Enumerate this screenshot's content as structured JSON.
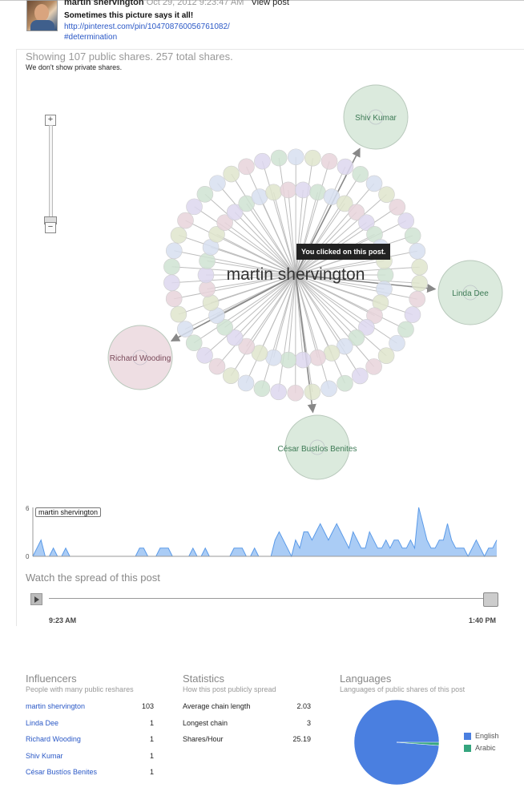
{
  "post": {
    "author": "martin shervington",
    "date": "Oct 29, 2012 9:23:47 AM",
    "view_post": "View post",
    "title": "Sometimes this picture says it all!",
    "url": "http://pinterest.com/pin/104708760056761082/",
    "hashtag": "#determination"
  },
  "summary": {
    "shares_text": "Showing 107 public shares. 257 total shares.",
    "private_note": "We don't show private shares."
  },
  "zoom": {
    "plus": "+",
    "minus": "−"
  },
  "graph": {
    "center_label": "martin shervington",
    "tooltip": "You clicked on this post.",
    "influencer_nodes": [
      "Shiv Kumar",
      "Linda Dee",
      "Richard Wooding",
      "César Bustíos Benites"
    ],
    "colors": {
      "green": "#cfe3d2",
      "pink": "#e8d3da",
      "blue": "#d7dff0",
      "lavender": "#ddd7ee",
      "olive": "#dfe5cc",
      "edge": "#bdbdbd",
      "arrow": "#888888"
    }
  },
  "timeline": {
    "tooltip_label": "martin shervington",
    "y_max_label": "6",
    "y_min_label": "0",
    "fill": "#aaccf5",
    "stroke": "#5a9ae8"
  },
  "chart_data": {
    "type": "area",
    "title": "",
    "xlabel": "",
    "ylabel": "",
    "ylim": [
      0,
      6
    ],
    "x_range_labels": [
      "9:23 AM",
      "1:40 PM"
    ],
    "values": [
      0,
      1,
      2,
      0,
      0,
      1,
      0,
      0,
      1,
      0,
      0,
      0,
      0,
      0,
      0,
      0,
      0,
      0,
      0,
      0,
      0,
      0,
      0,
      0,
      0,
      0,
      1,
      1,
      0,
      0,
      0,
      1,
      1,
      1,
      0,
      0,
      0,
      0,
      0,
      1,
      0,
      0,
      1,
      0,
      0,
      0,
      0,
      0,
      0,
      1,
      1,
      1,
      0,
      0,
      1,
      0,
      0,
      0,
      0,
      2,
      3,
      2,
      1,
      0,
      2,
      1,
      3,
      3,
      2,
      3,
      4,
      3,
      2,
      3,
      4,
      3,
      2,
      1,
      3,
      2,
      1,
      1,
      3,
      2,
      1,
      1,
      2,
      1,
      2,
      2,
      1,
      1,
      2,
      1,
      6,
      4,
      2,
      1,
      1,
      2,
      2,
      4,
      2,
      1,
      1,
      1,
      0,
      1,
      2,
      1,
      0,
      1,
      1,
      2
    ]
  },
  "playback": {
    "watch_title": "Watch the spread of this post",
    "start_time": "9:23 AM",
    "end_time": "1:40 PM"
  },
  "influencers": {
    "title": "Influencers",
    "subtitle": "People with many public reshares",
    "rows": [
      {
        "name": "martin shervington",
        "count": "103"
      },
      {
        "name": "Linda Dee",
        "count": "1"
      },
      {
        "name": "Richard Wooding",
        "count": "1"
      },
      {
        "name": "Shiv Kumar",
        "count": "1"
      },
      {
        "name": "César Bustíos Benites",
        "count": "1"
      }
    ]
  },
  "statistics": {
    "title": "Statistics",
    "subtitle": "How this post publicly spread",
    "rows": [
      {
        "label": "Average chain length",
        "value": "2.03"
      },
      {
        "label": "Longest chain",
        "value": "3"
      },
      {
        "label": "Shares/Hour",
        "value": "25.19"
      }
    ]
  },
  "languages": {
    "title": "Languages",
    "subtitle": "Languages of public shares of this post",
    "items": [
      {
        "name": "English",
        "share": 0.99,
        "color": "#4a7fe0"
      },
      {
        "name": "Arabic",
        "share": 0.01,
        "color": "#35a57e"
      }
    ]
  }
}
